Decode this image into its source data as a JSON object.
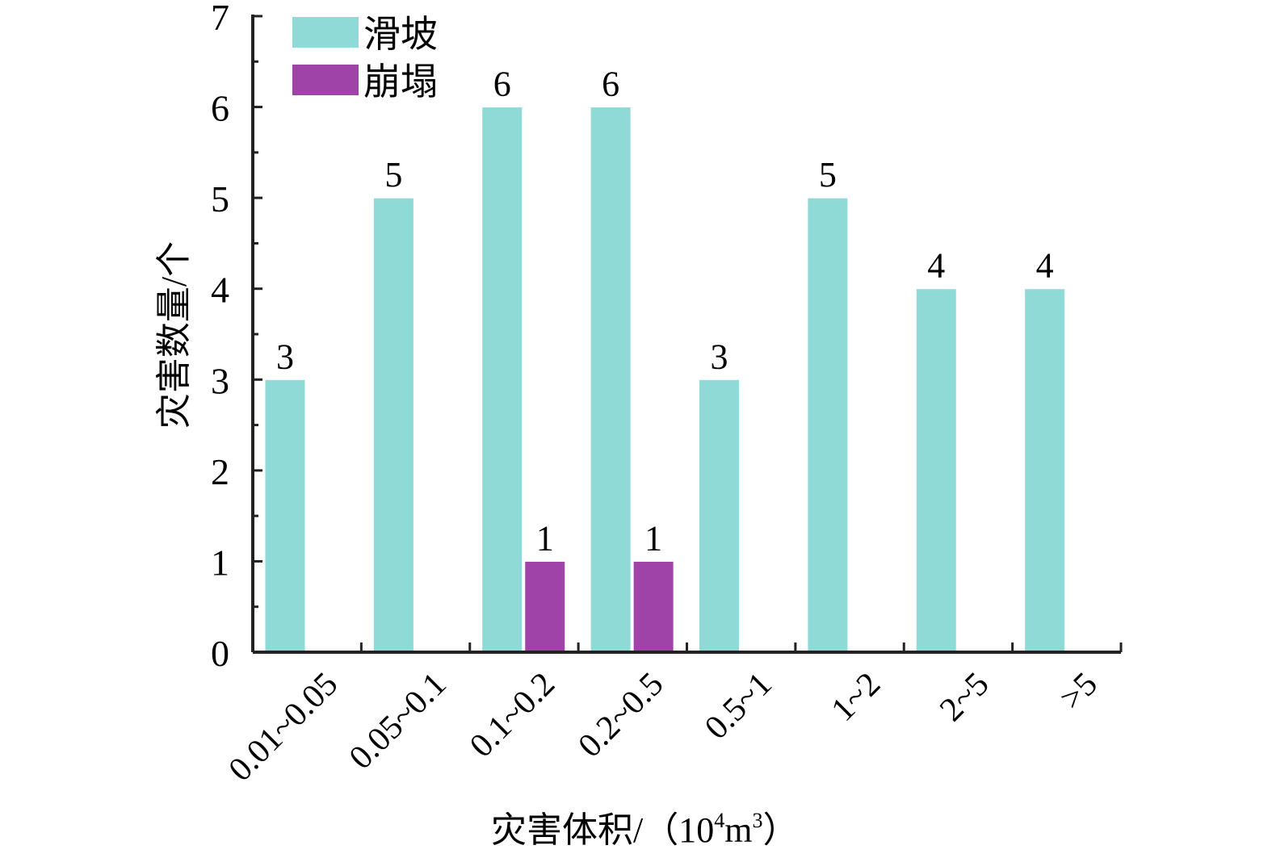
{
  "chart_data": {
    "type": "bar",
    "xlabel": "灾害体积/（10⁴m³）",
    "xlabel_parts": {
      "main": "灾害体积/（10",
      "exp1": "4",
      "unit": "m",
      "exp2": "3",
      "close": "）"
    },
    "ylabel": "灾害数量/个",
    "ylim": [
      0,
      7
    ],
    "yticks": [
      "0",
      "1",
      "2",
      "3",
      "4",
      "5",
      "6",
      "7"
    ],
    "categories": [
      "0.01~0.05",
      "0.05~0.1",
      "0.1~0.2",
      "0.2~0.5",
      "0.5~1",
      "1~2",
      "2~5",
      ">5"
    ],
    "series": [
      {
        "name": "滑坡",
        "color": "#8fd9d7",
        "values": [
          3,
          5,
          6,
          6,
          3,
          5,
          4,
          4
        ]
      },
      {
        "name": "崩塌",
        "color": "#a043a8",
        "values": [
          0,
          0,
          1,
          1,
          0,
          0,
          0,
          0
        ]
      }
    ],
    "legend": "top-left",
    "grid": false
  }
}
